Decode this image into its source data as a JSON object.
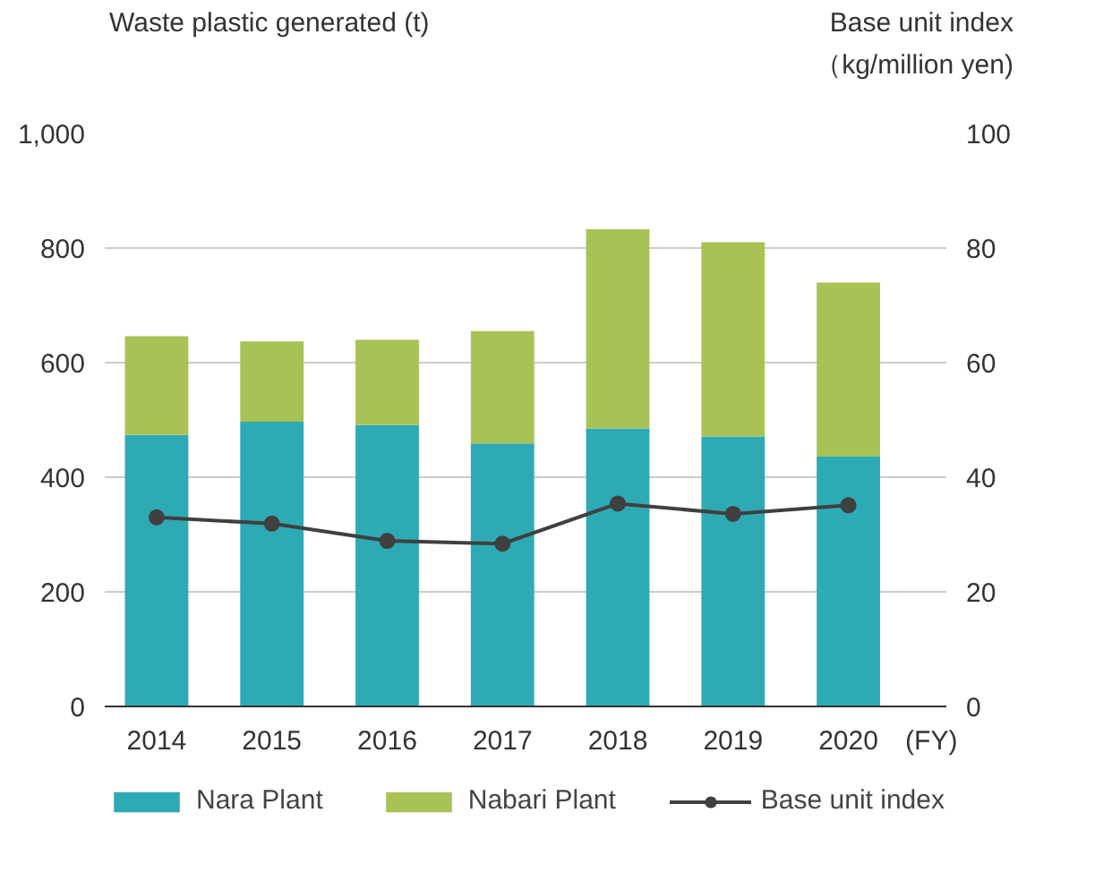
{
  "chart_data": {
    "type": "bar",
    "stacked": true,
    "categories": [
      "2014",
      "2015",
      "2016",
      "2017",
      "2018",
      "2019",
      "2020"
    ],
    "series": [
      {
        "name": "Nara Plant",
        "color": "#2eaab5",
        "values": [
          474,
          497,
          491,
          459,
          485,
          471,
          436
        ]
      },
      {
        "name": "Nabari Plant",
        "color": "#a8c256",
        "values": [
          172,
          140,
          149,
          196,
          348,
          339,
          304
        ]
      },
      {
        "name": "Base unit index",
        "type": "line",
        "axis": "y2",
        "color": "#404040",
        "marker": "circle",
        "values": [
          33.0,
          31.9,
          28.9,
          28.4,
          35.4,
          33.6,
          35.1
        ]
      }
    ],
    "ylabel": "Waste plastic generated (t)",
    "y2label": "Base unit index\n（kg/million yen)",
    "ylim": [
      0,
      1000
    ],
    "yticks": [
      0,
      200,
      400,
      600,
      800,
      {
        "value": 1000,
        "label": "1,000"
      }
    ],
    "y2lim": [
      0,
      100
    ],
    "y2ticks": [
      0,
      20,
      40,
      60,
      80,
      100
    ],
    "annotations": [
      "(FY)"
    ],
    "grid": "y",
    "legend": "bottom"
  }
}
